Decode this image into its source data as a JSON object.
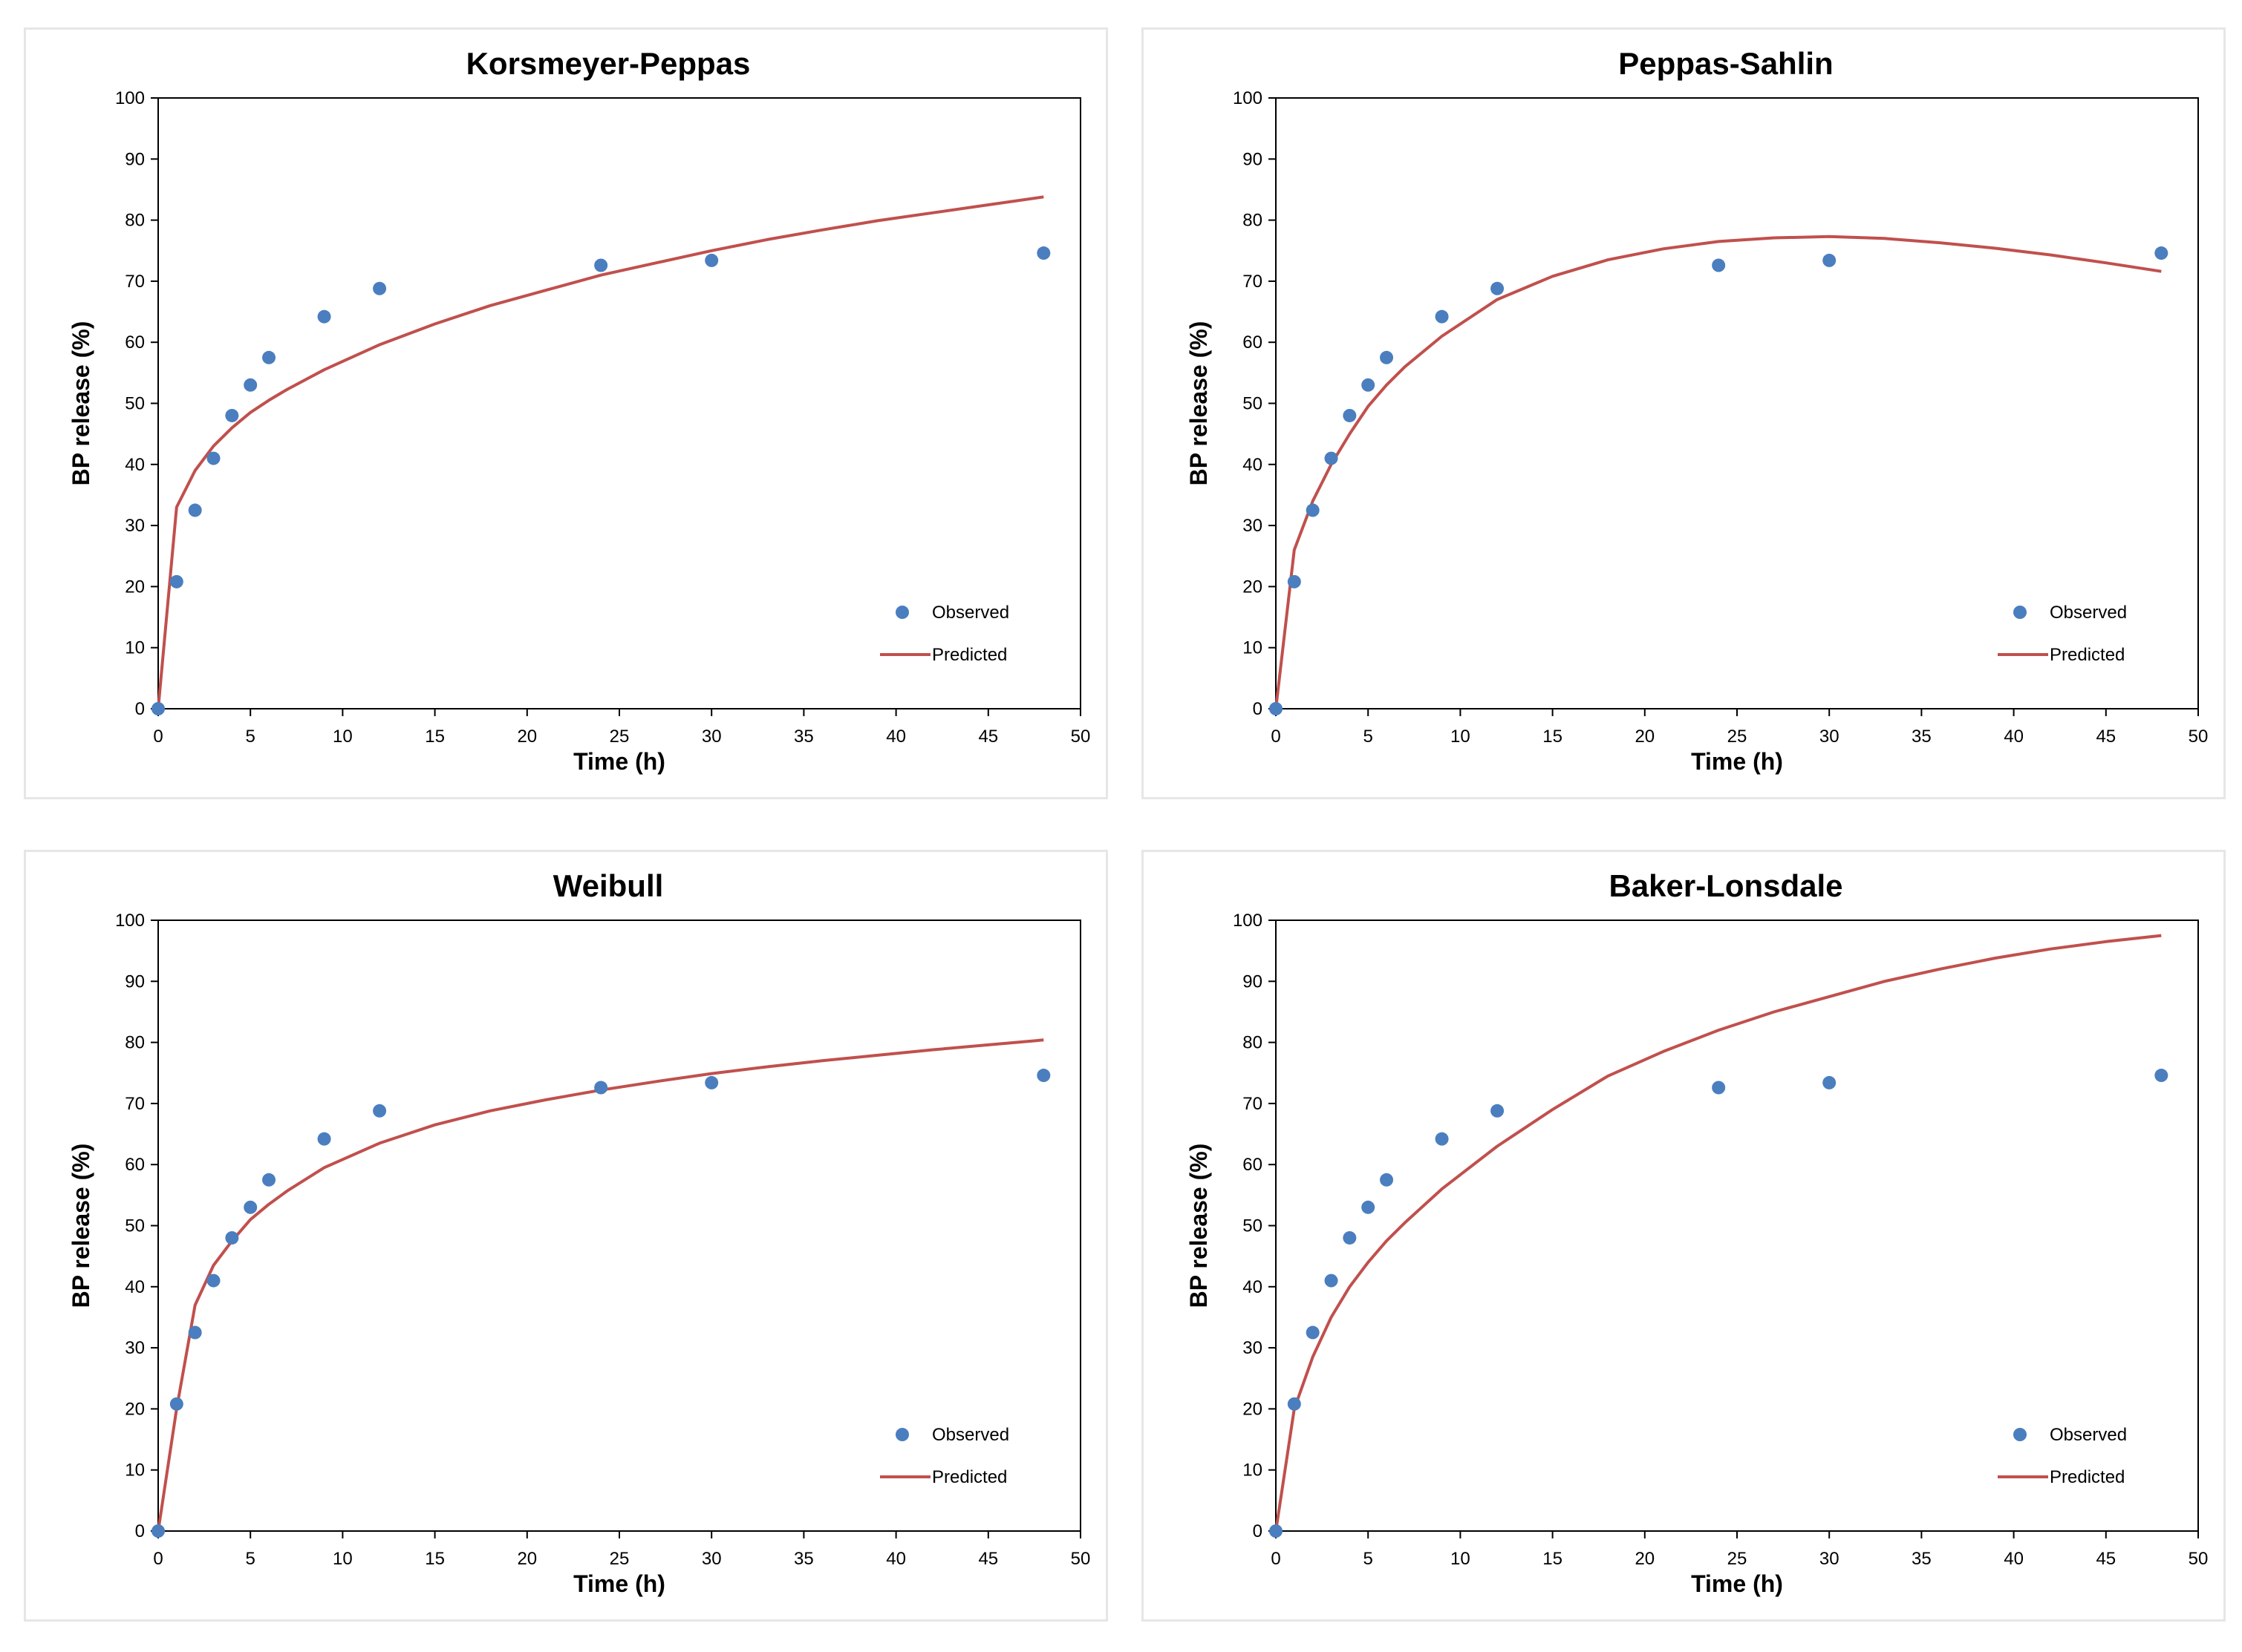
{
  "colors": {
    "observed": "#4a7ebf",
    "predicted": "#c0504d",
    "axis": "#000000",
    "frame": "#e6e6e6"
  },
  "chart_data": [
    {
      "type": "scatter",
      "title": "Korsmeyer-Peppas",
      "xlabel": "Time (h)",
      "ylabel": "BP release (%)",
      "xlim": [
        0,
        50
      ],
      "ylim": [
        0,
        100
      ],
      "xticks": [
        "0",
        "5",
        "10",
        "15",
        "20",
        "25",
        "30",
        "35",
        "40",
        "45",
        "50"
      ],
      "yticks": [
        "0",
        "10",
        "20",
        "30",
        "40",
        "50",
        "60",
        "70",
        "80",
        "90",
        "100"
      ],
      "legend": {
        "position": "bottom-right",
        "observed": "Observed",
        "predicted": "Predicted"
      },
      "series": [
        {
          "name": "Observed",
          "kind": "points",
          "x": [
            0,
            1,
            2,
            3,
            4,
            5,
            6,
            9,
            12,
            24,
            30,
            48
          ],
          "y": [
            0,
            20.8,
            32.5,
            41,
            48,
            53,
            57.5,
            64.2,
            68.8,
            72.6,
            73.4,
            74.6
          ]
        },
        {
          "name": "Predicted",
          "kind": "line",
          "x": [
            0,
            1,
            2,
            3,
            4,
            5,
            6,
            7,
            9,
            12,
            15,
            18,
            21,
            24,
            27,
            30,
            33,
            36,
            39,
            42,
            45,
            48
          ],
          "y": [
            0,
            33,
            39,
            43,
            46,
            48.5,
            50.5,
            52.3,
            55.5,
            59.6,
            63,
            66,
            68.5,
            71,
            73,
            75,
            76.8,
            78.4,
            79.9,
            81.2,
            82.5,
            83.8
          ]
        }
      ]
    },
    {
      "type": "scatter",
      "title": "Peppas-Sahlin",
      "xlabel": "Time (h)",
      "ylabel": "BP release (%)",
      "xlim": [
        0,
        50
      ],
      "ylim": [
        0,
        100
      ],
      "xticks": [
        "0",
        "5",
        "10",
        "15",
        "20",
        "25",
        "30",
        "35",
        "40",
        "45",
        "50"
      ],
      "yticks": [
        "0",
        "10",
        "20",
        "30",
        "40",
        "50",
        "60",
        "70",
        "80",
        "90",
        "100"
      ],
      "legend": {
        "position": "bottom-right",
        "observed": "Observed",
        "predicted": "Predicted"
      },
      "series": [
        {
          "name": "Observed",
          "kind": "points",
          "x": [
            0,
            1,
            2,
            3,
            4,
            5,
            6,
            9,
            12,
            24,
            30,
            48
          ],
          "y": [
            0,
            20.8,
            32.5,
            41,
            48,
            53,
            57.5,
            64.2,
            68.8,
            72.6,
            73.4,
            74.6
          ]
        },
        {
          "name": "Predicted",
          "kind": "line",
          "x": [
            0,
            1,
            2,
            3,
            4,
            5,
            6,
            7,
            9,
            12,
            15,
            18,
            21,
            24,
            27,
            30,
            33,
            36,
            39,
            42,
            45,
            48
          ],
          "y": [
            0,
            26,
            34,
            40,
            45,
            49.5,
            53,
            56,
            61,
            67,
            70.8,
            73.5,
            75.3,
            76.5,
            77.1,
            77.3,
            77,
            76.3,
            75.4,
            74.3,
            73,
            71.6
          ]
        }
      ]
    },
    {
      "type": "scatter",
      "title": "Weibull",
      "xlabel": "Time (h)",
      "ylabel": "BP release (%)",
      "xlim": [
        0,
        50
      ],
      "ylim": [
        0,
        100
      ],
      "xticks": [
        "0",
        "5",
        "10",
        "15",
        "20",
        "25",
        "30",
        "35",
        "40",
        "45",
        "50"
      ],
      "yticks": [
        "0",
        "10",
        "20",
        "30",
        "40",
        "50",
        "60",
        "70",
        "80",
        "90",
        "100"
      ],
      "legend": {
        "position": "bottom-right",
        "observed": "Observed",
        "predicted": "Predicted"
      },
      "series": [
        {
          "name": "Observed",
          "kind": "points",
          "x": [
            0,
            1,
            2,
            3,
            4,
            5,
            6,
            9,
            12,
            24,
            30,
            48
          ],
          "y": [
            0,
            20.8,
            32.5,
            41,
            48,
            53,
            57.5,
            64.2,
            68.8,
            72.6,
            73.4,
            74.6
          ]
        },
        {
          "name": "Predicted",
          "kind": "line",
          "x": [
            0,
            1,
            2,
            3,
            4,
            5,
            6,
            7,
            9,
            12,
            15,
            18,
            21,
            24,
            27,
            30,
            33,
            36,
            39,
            42,
            45,
            48
          ],
          "y": [
            0,
            20,
            37,
            43.5,
            47.5,
            51,
            53.5,
            55.7,
            59.5,
            63.5,
            66.5,
            68.8,
            70.6,
            72.2,
            73.6,
            74.9,
            76,
            77,
            77.9,
            78.8,
            79.6,
            80.4
          ]
        }
      ]
    },
    {
      "type": "scatter",
      "title": "Baker-Lonsdale",
      "xlabel": "Time (h)",
      "ylabel": "BP release (%)",
      "xlim": [
        0,
        50
      ],
      "ylim": [
        0,
        100
      ],
      "xticks": [
        "0",
        "5",
        "10",
        "15",
        "20",
        "25",
        "30",
        "35",
        "40",
        "45",
        "50"
      ],
      "yticks": [
        "0",
        "10",
        "20",
        "30",
        "40",
        "50",
        "60",
        "70",
        "80",
        "90",
        "100"
      ],
      "legend": {
        "position": "bottom-right",
        "observed": "Observed",
        "predicted": "Predicted"
      },
      "series": [
        {
          "name": "Observed",
          "kind": "points",
          "x": [
            0,
            1,
            2,
            3,
            4,
            5,
            6,
            9,
            12,
            24,
            30,
            48
          ],
          "y": [
            0,
            20.8,
            32.5,
            41,
            48,
            53,
            57.5,
            64.2,
            68.8,
            72.6,
            73.4,
            74.6
          ]
        },
        {
          "name": "Predicted",
          "kind": "line",
          "x": [
            0,
            1,
            2,
            3,
            4,
            5,
            6,
            7,
            9,
            12,
            15,
            18,
            21,
            24,
            27,
            30,
            33,
            36,
            39,
            42,
            45,
            48
          ],
          "y": [
            0,
            20,
            28.5,
            35,
            40,
            44,
            47.5,
            50.5,
            56,
            63,
            69,
            74.5,
            78.5,
            82,
            85,
            87.5,
            90,
            92,
            93.8,
            95.3,
            96.5,
            97.5
          ]
        }
      ]
    }
  ]
}
